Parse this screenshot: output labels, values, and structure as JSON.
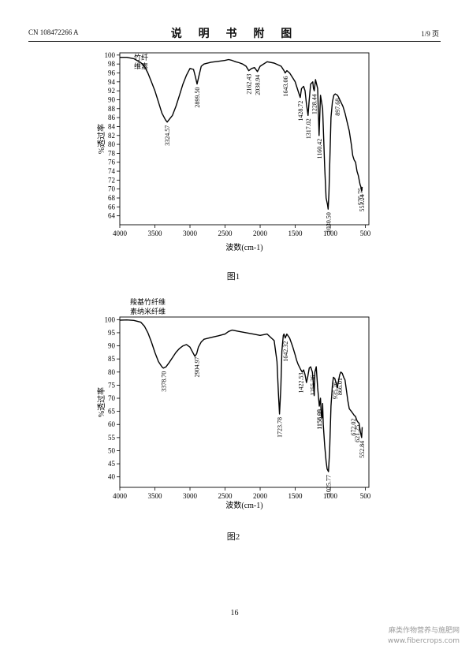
{
  "header": {
    "doc_number": "CN 108472266 A",
    "title": "说 明 书 附 图",
    "page_info": "1/9 页"
  },
  "page_number": "16",
  "watermark": {
    "line1": "麻类作物营养与施肥网",
    "line2": "www.fibercrops.com"
  },
  "chart_data": [
    {
      "type": "line",
      "caption": "图1",
      "legend": "竹纤维素",
      "xlabel": "波数(cm-1)",
      "ylabel": "%透过率",
      "xlim": [
        4000,
        450
      ],
      "x_reversed": true,
      "ylim": [
        62,
        100.5
      ],
      "x_ticks": [
        4000,
        3500,
        3000,
        2500,
        2000,
        1500,
        1000,
        500
      ],
      "y_ticks": [
        64,
        66,
        68,
        70,
        72,
        74,
        76,
        78,
        80,
        82,
        84,
        86,
        88,
        90,
        92,
        94,
        96,
        98,
        100
      ],
      "series": [
        {
          "x": [
            4000,
            3900,
            3800,
            3700,
            3650,
            3600,
            3550,
            3500,
            3450,
            3400,
            3350,
            3324.57,
            3300,
            3250,
            3200,
            3150,
            3100,
            3050,
            3000,
            2950,
            2920,
            2899.5,
            2870,
            2840,
            2800,
            2700,
            2600,
            2500,
            2450,
            2400,
            2350,
            2300,
            2250,
            2200,
            2162.43,
            2120,
            2080,
            2038.94,
            2000,
            1900,
            1800,
            1700,
            1660,
            1643.06,
            1620,
            1580,
            1540,
            1500,
            1480,
            1460,
            1428.72,
            1410,
            1380,
            1360,
            1340,
            1317.02,
            1300,
            1280,
            1250,
            1240,
            1228,
            1210,
            1180,
            1160.42,
            1140,
            1110,
            1080,
            1060,
            1040,
            1030.5,
            1020,
            1000,
            990,
            970,
            950,
            930,
            897.68,
            880,
            850,
            820,
            790,
            760,
            730,
            700,
            680,
            660,
            640,
            620,
            600,
            575.75,
            565,
            553.24,
            545
          ],
          "y": [
            99.5,
            99.5,
            99.2,
            98.3,
            97.5,
            96.0,
            94.0,
            92.0,
            89.5,
            87.0,
            85.5,
            85.0,
            85.5,
            86.5,
            88.5,
            91.0,
            93.5,
            95.5,
            97.0,
            96.8,
            95.0,
            93.5,
            95.5,
            97.5,
            98.0,
            98.4,
            98.6,
            98.8,
            99.0,
            98.8,
            98.5,
            98.3,
            98.0,
            97.5,
            96.5,
            97.0,
            97.2,
            96.3,
            97.5,
            98.5,
            98.2,
            97.5,
            96.5,
            96.0,
            96.5,
            96.0,
            95.0,
            94.0,
            93.0,
            92.0,
            90.5,
            92.5,
            93.0,
            92.0,
            89.0,
            86.5,
            90.0,
            93.5,
            94.0,
            92.5,
            92.0,
            94.5,
            92.5,
            82.0,
            91.0,
            88.0,
            75.0,
            68.0,
            66.5,
            65.5,
            69.0,
            80.0,
            86.0,
            89.5,
            91.0,
            91.3,
            91.0,
            90.5,
            89.5,
            88.5,
            87.0,
            85.0,
            83.0,
            80.0,
            77.5,
            76.5,
            76.0,
            74.0,
            73.0,
            71.0,
            70.5,
            69.5,
            70.5
          ]
        }
      ],
      "annotations": [
        {
          "x": 3324.57,
          "y": 85.0,
          "label": "3324.57"
        },
        {
          "x": 2899.5,
          "y": 93.5,
          "label": "2899.50"
        },
        {
          "x": 2162.43,
          "y": 96.5,
          "label": "2162.43"
        },
        {
          "x": 2038.94,
          "y": 96.3,
          "label": "2038.94"
        },
        {
          "x": 1643.06,
          "y": 96.0,
          "label": "1643.06"
        },
        {
          "x": 1428.72,
          "y": 90.5,
          "label": "1428.72"
        },
        {
          "x": 1317.02,
          "y": 86.5,
          "label": "1317.02"
        },
        {
          "x": 1228.44,
          "y": 92.0,
          "label": "1228.44"
        },
        {
          "x": 1160.42,
          "y": 82.0,
          "label": "1160.42"
        },
        {
          "x": 1030.5,
          "y": 65.5,
          "label": "1030.50"
        },
        {
          "x": 897.68,
          "y": 91.0,
          "label": "897.68"
        },
        {
          "x": 575.75,
          "y": 71.0,
          "label": "575.75"
        },
        {
          "x": 553.24,
          "y": 69.5,
          "label": "553.24"
        }
      ]
    },
    {
      "type": "line",
      "caption": "图2",
      "legend": "羧基竹纤维素纳米纤维",
      "xlabel": "波数(cm-1)",
      "ylabel": "%透过率",
      "xlim": [
        4000,
        450
      ],
      "x_reversed": true,
      "ylim": [
        36,
        101
      ],
      "x_ticks": [
        4000,
        3500,
        3000,
        2500,
        2000,
        1500,
        1000,
        500
      ],
      "y_ticks": [
        40,
        45,
        50,
        55,
        60,
        65,
        70,
        75,
        80,
        85,
        90,
        95,
        100
      ],
      "series": [
        {
          "x": [
            4000,
            3900,
            3800,
            3700,
            3650,
            3600,
            3550,
            3500,
            3450,
            3400,
            3378.7,
            3340,
            3300,
            3250,
            3200,
            3150,
            3100,
            3050,
            3000,
            2960,
            2930,
            2904.97,
            2880,
            2840,
            2800,
            2700,
            2600,
            2500,
            2450,
            2400,
            2300,
            2200,
            2100,
            2000,
            1900,
            1800,
            1760,
            1740,
            1723.78,
            1705,
            1690,
            1670,
            1660,
            1642.32,
            1620,
            1580,
            1540,
            1500,
            1480,
            1460,
            1422.53,
            1400,
            1380,
            1360,
            1340,
            1320,
            1300,
            1280,
            1255.36,
            1240,
            1230,
            1220,
            1200,
            1180,
            1156.09,
            1140,
            1130,
            1120,
            1110,
            1100,
            1080,
            1060,
            1045,
            1025.77,
            1010,
            1000,
            990,
            970,
            955,
            935.26,
            920,
            900,
            880,
            866.01,
            850,
            830,
            810,
            790,
            770,
            750,
            730,
            700,
            672.02,
            660,
            640,
            621.25,
            610,
            590,
            570,
            552.84,
            545
          ],
          "y": [
            99.8,
            99.9,
            99.7,
            99.0,
            97.5,
            95.0,
            91.5,
            87.5,
            84.0,
            82.0,
            81.5,
            82.0,
            83.5,
            85.5,
            87.5,
            89.0,
            90.0,
            90.5,
            89.5,
            87.5,
            86.0,
            87.0,
            89.5,
            91.5,
            92.5,
            93.2,
            93.8,
            94.5,
            95.5,
            96.0,
            95.5,
            95.0,
            94.5,
            94.0,
            94.5,
            92.0,
            84.0,
            72.0,
            64.0,
            74.0,
            88.0,
            94.0,
            94.5,
            93.0,
            94.5,
            93.0,
            90.0,
            86.5,
            84.5,
            83.0,
            81.0,
            80.0,
            80.8,
            79.0,
            76.0,
            78.5,
            81.5,
            82.0,
            80.0,
            75.0,
            71.0,
            80.0,
            82.0,
            74.0,
            67.0,
            70.0,
            64.0,
            62.5,
            68.0,
            60.0,
            52.0,
            46.0,
            43.0,
            42.0,
            50.0,
            58.0,
            67.0,
            75.0,
            78.0,
            77.5,
            76.0,
            74.0,
            77.0,
            79.0,
            80.0,
            79.5,
            78.0,
            77.0,
            73.0,
            69.0,
            66.0,
            65.0,
            64.0,
            63.5,
            63.0,
            61.5,
            61.0,
            60.5,
            57.0,
            55.0,
            59.0
          ]
        }
      ],
      "annotations": [
        {
          "x": 3378.7,
          "y": 81.5,
          "label": "3378.70"
        },
        {
          "x": 2904.97,
          "y": 87.0,
          "label": "2904.97"
        },
        {
          "x": 1723.78,
          "y": 64.0,
          "label": "1723.78"
        },
        {
          "x": 1642.32,
          "y": 93.0,
          "label": "1642.32"
        },
        {
          "x": 1422.53,
          "y": 81.0,
          "label": "1422.53"
        },
        {
          "x": 1255.36,
          "y": 80.0,
          "label": "1255.36"
        },
        {
          "x": 1156.09,
          "y": 67.0,
          "label": "1156.09"
        },
        {
          "x": 1158.95,
          "y": 67.0,
          "label": "1158.95"
        },
        {
          "x": 1025.77,
          "y": 42.0,
          "label": "1025.77"
        },
        {
          "x": 935.26,
          "y": 77.5,
          "label": "935.26"
        },
        {
          "x": 866.01,
          "y": 79.0,
          "label": "866.01"
        },
        {
          "x": 672.02,
          "y": 63.5,
          "label": "672.02"
        },
        {
          "x": 621.25,
          "y": 61.0,
          "label": "621.25"
        },
        {
          "x": 552.84,
          "y": 55.0,
          "label": "552.84"
        }
      ]
    }
  ]
}
